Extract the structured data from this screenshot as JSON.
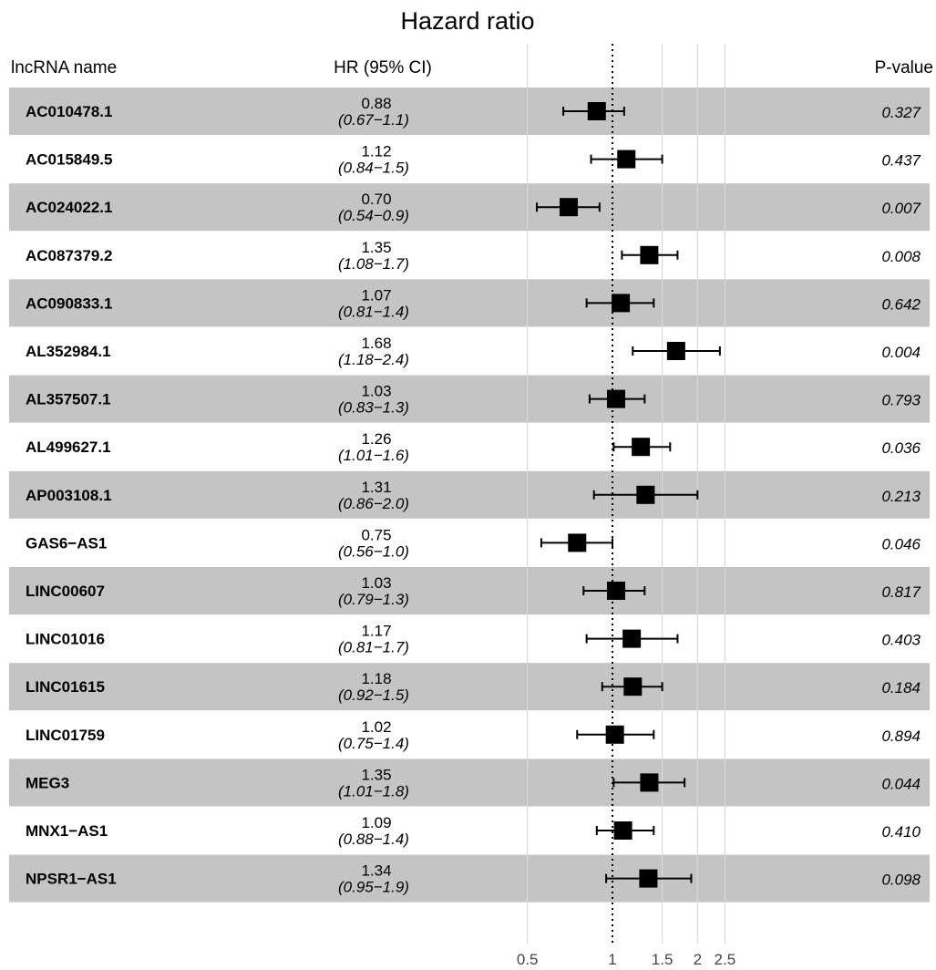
{
  "chart_data": {
    "type": "forest",
    "title": "Hazard ratio",
    "column_headers": {
      "name": "lncRNA name",
      "hr": "HR (95% CI)",
      "p": "P-value"
    },
    "x_scale": "log",
    "x_ticks": [
      0.5,
      1,
      1.5,
      2,
      2.5
    ],
    "x_tick_labels": [
      "0.5",
      "1",
      "1.5",
      "2",
      "2.5"
    ],
    "reference_line": 1,
    "rows": [
      {
        "name": "AC010478.1",
        "hr": 0.88,
        "hr_label": "0.88",
        "lower": 0.67,
        "upper": 1.1,
        "ci_label": "(0.67−1.1)",
        "p": "0.327"
      },
      {
        "name": "AC015849.5",
        "hr": 1.12,
        "hr_label": "1.12",
        "lower": 0.84,
        "upper": 1.5,
        "ci_label": "(0.84−1.5)",
        "p": "0.437"
      },
      {
        "name": "AC024022.1",
        "hr": 0.7,
        "hr_label": "0.70",
        "lower": 0.54,
        "upper": 0.9,
        "ci_label": "(0.54−0.9)",
        "p": "0.007"
      },
      {
        "name": "AC087379.2",
        "hr": 1.35,
        "hr_label": "1.35",
        "lower": 1.08,
        "upper": 1.7,
        "ci_label": "(1.08−1.7)",
        "p": "0.008"
      },
      {
        "name": "AC090833.1",
        "hr": 1.07,
        "hr_label": "1.07",
        "lower": 0.81,
        "upper": 1.4,
        "ci_label": "(0.81−1.4)",
        "p": "0.642"
      },
      {
        "name": "AL352984.1",
        "hr": 1.68,
        "hr_label": "1.68",
        "lower": 1.18,
        "upper": 2.4,
        "ci_label": "(1.18−2.4)",
        "p": "0.004"
      },
      {
        "name": "AL357507.1",
        "hr": 1.03,
        "hr_label": "1.03",
        "lower": 0.83,
        "upper": 1.3,
        "ci_label": "(0.83−1.3)",
        "p": "0.793"
      },
      {
        "name": "AL499627.1",
        "hr": 1.26,
        "hr_label": "1.26",
        "lower": 1.01,
        "upper": 1.6,
        "ci_label": "(1.01−1.6)",
        "p": "0.036"
      },
      {
        "name": "AP003108.1",
        "hr": 1.31,
        "hr_label": "1.31",
        "lower": 0.86,
        "upper": 2.0,
        "ci_label": "(0.86−2.0)",
        "p": "0.213"
      },
      {
        "name": "GAS6−AS1",
        "hr": 0.75,
        "hr_label": "0.75",
        "lower": 0.56,
        "upper": 1.0,
        "ci_label": "(0.56−1.0)",
        "p": "0.046"
      },
      {
        "name": "LINC00607",
        "hr": 1.03,
        "hr_label": "1.03",
        "lower": 0.79,
        "upper": 1.3,
        "ci_label": "(0.79−1.3)",
        "p": "0.817"
      },
      {
        "name": "LINC01016",
        "hr": 1.17,
        "hr_label": "1.17",
        "lower": 0.81,
        "upper": 1.7,
        "ci_label": "(0.81−1.7)",
        "p": "0.403"
      },
      {
        "name": "LINC01615",
        "hr": 1.18,
        "hr_label": "1.18",
        "lower": 0.92,
        "upper": 1.5,
        "ci_label": "(0.92−1.5)",
        "p": "0.184"
      },
      {
        "name": "LINC01759",
        "hr": 1.02,
        "hr_label": "1.02",
        "lower": 0.75,
        "upper": 1.4,
        "ci_label": "(0.75−1.4)",
        "p": "0.894"
      },
      {
        "name": "MEG3",
        "hr": 1.35,
        "hr_label": "1.35",
        "lower": 1.01,
        "upper": 1.8,
        "ci_label": "(1.01−1.8)",
        "p": "0.044"
      },
      {
        "name": "MNX1−AS1",
        "hr": 1.09,
        "hr_label": "1.09",
        "lower": 0.88,
        "upper": 1.4,
        "ci_label": "(0.88−1.4)",
        "p": "0.410"
      },
      {
        "name": "NPSR1−AS1",
        "hr": 1.34,
        "hr_label": "1.34",
        "lower": 0.95,
        "upper": 1.9,
        "ci_label": "(0.95−1.9)",
        "p": "0.098"
      }
    ],
    "colors": {
      "stripe": "#c4c4c4",
      "marker": "#000000",
      "gridline": "#d9d9d9"
    },
    "grid": true
  }
}
